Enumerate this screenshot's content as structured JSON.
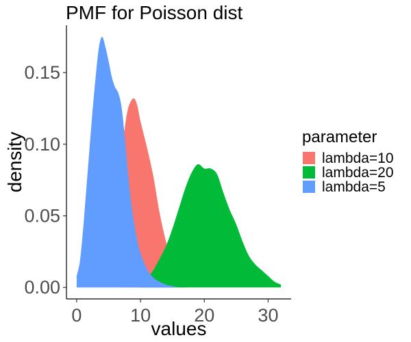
{
  "chart_data": {
    "type": "area",
    "title": "PMF for Poisson dist",
    "xlabel": "values",
    "ylabel": "density",
    "xlim": [
      -1.6,
      33.6
    ],
    "ylim": [
      -0.008,
      0.183
    ],
    "xticks": [
      0,
      10,
      20,
      30
    ],
    "yticks": [
      0.0,
      0.05,
      0.1,
      0.15
    ],
    "ytick_labels": [
      "0.00",
      "0.05",
      "0.10",
      "0.15"
    ],
    "grid": false,
    "legend": {
      "title": "parameter",
      "placement": "right"
    },
    "series": [
      {
        "name": "lambda=10",
        "color": "#F8766D",
        "x": [
          7,
          7.5,
          8,
          8.5,
          9,
          9.5,
          10,
          11,
          12,
          13,
          14,
          15,
          16,
          17
        ],
        "y": [
          0.09,
          0.11,
          0.124,
          0.13,
          0.132,
          0.127,
          0.116,
          0.098,
          0.078,
          0.052,
          0.032,
          0.018,
          0.008,
          0.001
        ]
      },
      {
        "name": "lambda=20",
        "color": "#00BA38",
        "x": [
          10,
          11,
          12,
          13,
          14,
          15,
          16,
          17,
          18,
          19,
          20,
          21,
          22,
          23,
          24,
          25,
          26,
          27,
          28,
          29,
          30,
          31,
          32
        ],
        "y": [
          0.0,
          0.006,
          0.012,
          0.02,
          0.029,
          0.041,
          0.055,
          0.069,
          0.08,
          0.086,
          0.083,
          0.083,
          0.079,
          0.066,
          0.054,
          0.044,
          0.032,
          0.022,
          0.016,
          0.012,
          0.008,
          0.004,
          0.002
        ]
      },
      {
        "name": "lambda=5",
        "color": "#619CFF",
        "x": [
          0,
          0.5,
          1,
          1.5,
          2,
          2.5,
          3,
          3.5,
          4,
          4.5,
          5,
          5.5,
          6,
          6.5,
          7,
          7.5,
          8,
          8.5,
          9,
          9.5,
          10,
          11,
          12,
          13,
          14,
          15,
          16
        ],
        "y": [
          0.008,
          0.018,
          0.04,
          0.068,
          0.096,
          0.124,
          0.148,
          0.168,
          0.175,
          0.168,
          0.158,
          0.147,
          0.14,
          0.136,
          0.127,
          0.107,
          0.082,
          0.061,
          0.045,
          0.033,
          0.024,
          0.013,
          0.007,
          0.004,
          0.002,
          0.001,
          0.0
        ]
      }
    ]
  }
}
